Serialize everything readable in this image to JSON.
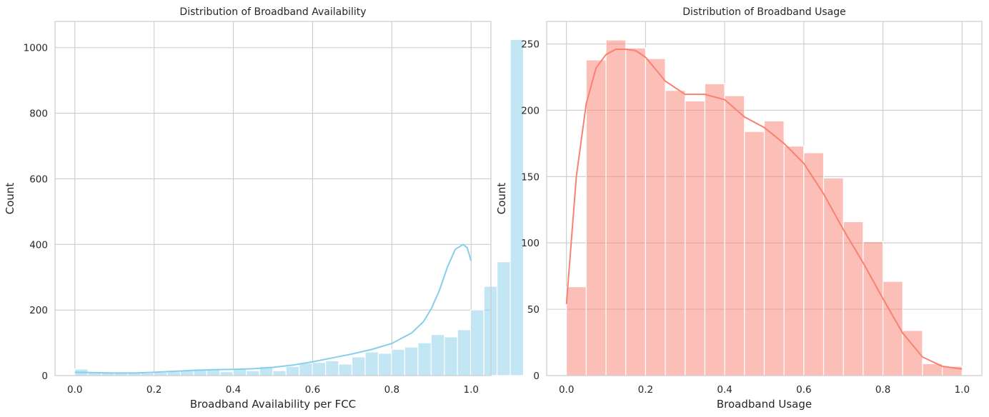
{
  "chart_data": [
    {
      "type": "histogram",
      "title": "Distribution of Broadband Availability",
      "xlabel": "Broadband Availability per FCC",
      "ylabel": "Count",
      "xlim": [
        -0.05,
        1.05
      ],
      "ylim": [
        0,
        1080
      ],
      "xticks": [
        0.0,
        0.2,
        0.4,
        0.6,
        0.8,
        1.0
      ],
      "xtick_labels": [
        "0.0",
        "0.2",
        "0.4",
        "0.6",
        "0.8",
        "1.0"
      ],
      "yticks": [
        0,
        200,
        400,
        600,
        800,
        1000
      ],
      "ytick_labels": [
        "0",
        "200",
        "400",
        "600",
        "800",
        "1000"
      ],
      "bin_start": 0.0,
      "bin_width": 0.0333,
      "counts": [
        20,
        10,
        10,
        8,
        8,
        8,
        10,
        12,
        15,
        17,
        18,
        12,
        20,
        15,
        28,
        15,
        28,
        38,
        40,
        45,
        35,
        57,
        72,
        68,
        80,
        87,
        100,
        125,
        118,
        140,
        200,
        272,
        347,
        1025
      ],
      "kde_x": [
        0,
        0.05,
        0.1,
        0.15,
        0.2,
        0.25,
        0.3,
        0.35,
        0.4,
        0.45,
        0.5,
        0.55,
        0.6,
        0.65,
        0.7,
        0.75,
        0.8,
        0.85,
        0.88,
        0.9,
        0.92,
        0.94,
        0.96,
        0.98,
        0.99,
        1.0
      ],
      "kde_y": [
        10,
        9,
        8,
        8,
        10,
        13,
        16,
        18,
        19,
        21,
        25,
        32,
        42,
        54,
        66,
        80,
        98,
        130,
        165,
        205,
        260,
        330,
        385,
        400,
        390,
        350
      ],
      "bar_color": "#87ceeb",
      "kde_color": "#87ceeb"
    },
    {
      "type": "histogram",
      "title": "Distribution of Broadband Usage",
      "xlabel": "Broadband Usage",
      "ylabel": "Count",
      "xlim": [
        -0.05,
        1.05
      ],
      "ylim": [
        0,
        267
      ],
      "xticks": [
        0.0,
        0.2,
        0.4,
        0.6,
        0.8,
        1.0
      ],
      "xtick_labels": [
        "0.0",
        "0.2",
        "0.4",
        "0.6",
        "0.8",
        "1.0"
      ],
      "yticks": [
        0,
        50,
        100,
        150,
        200,
        250
      ],
      "ytick_labels": [
        "0",
        "50",
        "100",
        "150",
        "200",
        "250"
      ],
      "bin_start": 0.0,
      "bin_width": 0.05,
      "counts": [
        67,
        238,
        253,
        247,
        239,
        215,
        207,
        220,
        211,
        184,
        192,
        173,
        168,
        149,
        116,
        101,
        71,
        34,
        9,
        7
      ],
      "kde_x": [
        0,
        0.025,
        0.05,
        0.075,
        0.1,
        0.125,
        0.15,
        0.175,
        0.2,
        0.25,
        0.3,
        0.35,
        0.4,
        0.45,
        0.5,
        0.55,
        0.6,
        0.65,
        0.7,
        0.75,
        0.8,
        0.85,
        0.9,
        0.95,
        1.0
      ],
      "kde_y": [
        54,
        150,
        205,
        232,
        242,
        246,
        246,
        245,
        240,
        222,
        212,
        212,
        208,
        195,
        187,
        175,
        160,
        137,
        110,
        85,
        58,
        32,
        14,
        7,
        5
      ],
      "bar_color": "#fa8072",
      "kde_color": "#fa8072"
    }
  ]
}
